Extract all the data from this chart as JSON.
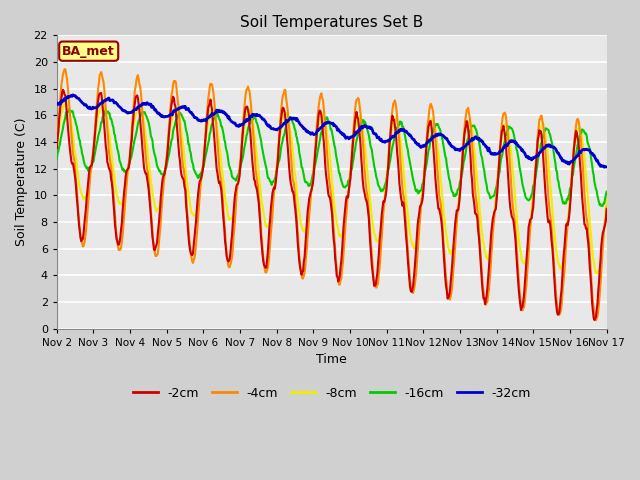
{
  "title": "Soil Temperatures Set B",
  "xlabel": "Time",
  "ylabel": "Soil Temperature (C)",
  "ylim": [
    0,
    22
  ],
  "yticks": [
    0,
    2,
    4,
    6,
    8,
    10,
    12,
    14,
    16,
    18,
    20,
    22
  ],
  "xtick_labels": [
    "Nov 2",
    "Nov 3",
    "Nov 4",
    "Nov 5",
    "Nov 6",
    "Nov 7",
    "Nov 8",
    "Nov 9",
    "Nov 10",
    "Nov 11",
    "Nov 12",
    "Nov 13",
    "Nov 14",
    "Nov 15",
    "Nov 16",
    "Nov 17"
  ],
  "series": {
    "neg2cm": {
      "color": "#cc0000",
      "label": "-2cm",
      "linewidth": 1.5
    },
    "neg4cm": {
      "color": "#ff8800",
      "label": "-4cm",
      "linewidth": 1.5
    },
    "neg8cm": {
      "color": "#eeee00",
      "label": "-8cm",
      "linewidth": 1.5
    },
    "neg16cm": {
      "color": "#00cc00",
      "label": "-16cm",
      "linewidth": 1.5
    },
    "neg32cm": {
      "color": "#0000cc",
      "label": "-32cm",
      "linewidth": 2.0
    }
  },
  "fig_facecolor": "#d0d0d0",
  "ax_facecolor": "#e8e8e8",
  "grid_color": "#ffffff",
  "annotation_label": "BA_met",
  "annotation_bg": "#ffff88",
  "annotation_border": "#990000"
}
